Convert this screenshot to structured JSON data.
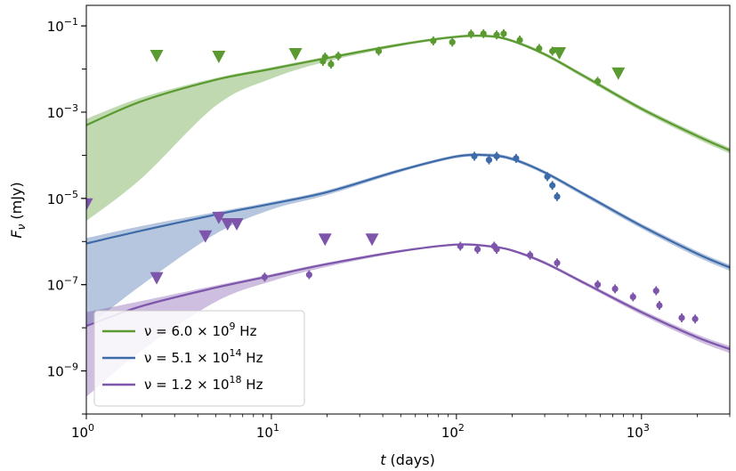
{
  "chart_data": {
    "type": "scatter",
    "title": "",
    "xlabel": "t (days)",
    "ylabel": "F_ν (mJy)",
    "xscale": "log",
    "yscale": "log",
    "xlim": [
      1,
      3000
    ],
    "ylim": [
      1e-10,
      0.3
    ],
    "x_ticks": [
      {
        "label_base": "10",
        "label_exp": "0"
      },
      {
        "label_base": "10",
        "label_exp": "1"
      },
      {
        "label_base": "10",
        "label_exp": "2"
      },
      {
        "label_base": "10",
        "label_exp": "3"
      }
    ],
    "y_ticks": [
      {
        "label_base": "10",
        "label_exp": "−1"
      },
      {
        "label_base": "10",
        "label_exp": "−3"
      },
      {
        "label_base": "10",
        "label_exp": "−5"
      },
      {
        "label_base": "10",
        "label_exp": "−7"
      },
      {
        "label_base": "10",
        "label_exp": "−9"
      }
    ],
    "legend": {
      "placement": "lower-left",
      "entries": [
        {
          "prefix": "ν = 6.0 × 10",
          "exp": "9",
          "suffix": " Hz"
        },
        {
          "prefix": "ν = 5.1 × 10",
          "exp": "14",
          "suffix": " Hz"
        },
        {
          "prefix": "ν = 1.2 × 10",
          "exp": "18",
          "suffix": " Hz"
        }
      ]
    },
    "series": [
      {
        "name": "ν = 6.0 × 10^9 Hz",
        "color": "#5a9a30",
        "model_t": [
          1,
          2,
          5,
          10,
          20,
          50,
          100,
          150,
          200,
          300,
          500,
          1000,
          2000,
          3000
        ],
        "model_f": [
          0.0005,
          0.0018,
          0.0056,
          0.01,
          0.018,
          0.037,
          0.056,
          0.058,
          0.045,
          0.022,
          0.0065,
          0.0012,
          0.00028,
          0.00013
        ],
        "band_lo": [
          3e-06,
          3e-05,
          0.0014,
          0.006,
          0.015,
          0.034,
          0.052,
          0.054,
          0.042,
          0.02,
          0.0058,
          0.00105,
          0.00024,
          0.00011
        ],
        "band_hi": [
          0.0007,
          0.0022,
          0.0062,
          0.011,
          0.0195,
          0.04,
          0.06,
          0.062,
          0.049,
          0.024,
          0.0072,
          0.00135,
          0.00032,
          0.00015
        ],
        "data_t": [
          19,
          19.5,
          21,
          23,
          38,
          75,
          95,
          120,
          140,
          165,
          180,
          220,
          280,
          330,
          580
        ],
        "data_f": [
          0.015,
          0.019,
          0.013,
          0.02,
          0.026,
          0.045,
          0.042,
          0.065,
          0.066,
          0.062,
          0.066,
          0.047,
          0.03,
          0.026,
          0.0052
        ],
        "upper_t": [
          2.4,
          5.2,
          13.5,
          360,
          750
        ],
        "upper_f": [
          0.02,
          0.019,
          0.022,
          0.023,
          0.0078
        ]
      },
      {
        "name": "ν = 5.1 × 10^14 Hz",
        "color": "#3d6aa8",
        "model_t": [
          1,
          2,
          5,
          10,
          20,
          50,
          100,
          150,
          200,
          300,
          500,
          1000,
          2000,
          3000
        ],
        "model_f": [
          9e-07,
          1.8e-06,
          4.2e-06,
          7.5e-06,
          1.4e-05,
          4.5e-05,
          9.4e-05,
          0.0001,
          8.2e-05,
          4e-05,
          1.2e-05,
          2.3e-06,
          5.2e-07,
          2.5e-07
        ],
        "band_lo": [
          1e-08,
          1e-07,
          1.5e-06,
          5.5e-06,
          1.2e-05,
          4.1e-05,
          8.6e-05,
          9.2e-05,
          7.5e-05,
          3.6e-05,
          1.06e-05,
          2e-06,
          4.4e-07,
          2.1e-07
        ],
        "band_hi": [
          1.2e-06,
          2.3e-06,
          4.8e-06,
          8.3e-06,
          1.55e-05,
          4.9e-05,
          0.000102,
          0.00011,
          9e-05,
          4.4e-05,
          1.32e-05,
          2.6e-06,
          6e-07,
          2.9e-07
        ],
        "data_t": [
          125,
          150,
          165,
          210,
          310,
          330,
          350
        ],
        "data_f": [
          9.5e-05,
          7.8e-05,
          9.5e-05,
          8.5e-05,
          3.2e-05,
          2e-05,
          1.1e-05
        ],
        "upper_t": [],
        "upper_f": []
      },
      {
        "name": "ν = 1.2 × 10^18 Hz",
        "color": "#7d55ab",
        "model_t": [
          1,
          2,
          5,
          10,
          20,
          50,
          100,
          150,
          200,
          300,
          500,
          1000,
          2000,
          3000
        ],
        "model_f": [
          1.1e-08,
          3.2e-08,
          8.5e-08,
          1.6e-07,
          3e-07,
          6e-07,
          8.5e-07,
          7.8e-07,
          6.2e-07,
          3.2e-07,
          1.05e-07,
          2.3e-08,
          6e-09,
          3.2e-09
        ],
        "band_lo": [
          2.5e-10,
          3e-09,
          4e-08,
          1.2e-07,
          2.6e-07,
          5.6e-07,
          8e-07,
          7.3e-07,
          5.8e-07,
          2.95e-07,
          9.5e-08,
          2e-08,
          5e-09,
          2.6e-09
        ],
        "band_hi": [
          2.3e-08,
          4.2e-08,
          9.6e-08,
          1.75e-07,
          3.25e-07,
          6.4e-07,
          9e-07,
          8.3e-07,
          6.6e-07,
          3.5e-07,
          1.15e-07,
          2.6e-08,
          7e-09,
          3.8e-09
        ],
        "data_t": [
          9.2,
          16,
          105,
          130,
          160,
          165,
          250,
          350,
          580,
          720,
          900,
          1200,
          1250,
          1650,
          1950
        ],
        "data_f": [
          1.5e-07,
          1.7e-07,
          7.8e-07,
          6.6e-07,
          7.8e-07,
          6.6e-07,
          4.8e-07,
          3.2e-07,
          1e-07,
          8e-08,
          5.2e-08,
          7.2e-08,
          3.3e-08,
          1.7e-08,
          1.6e-08
        ],
        "upper_t": [
          1.0,
          2.4,
          4.4,
          5.2,
          5.8,
          6.5,
          19.5,
          35
        ],
        "upper_f": [
          7.2e-06,
          1.4e-07,
          1.3e-06,
          3.5e-06,
          2.5e-06,
          2.5e-06,
          1.1e-06,
          1.1e-06
        ]
      }
    ]
  }
}
